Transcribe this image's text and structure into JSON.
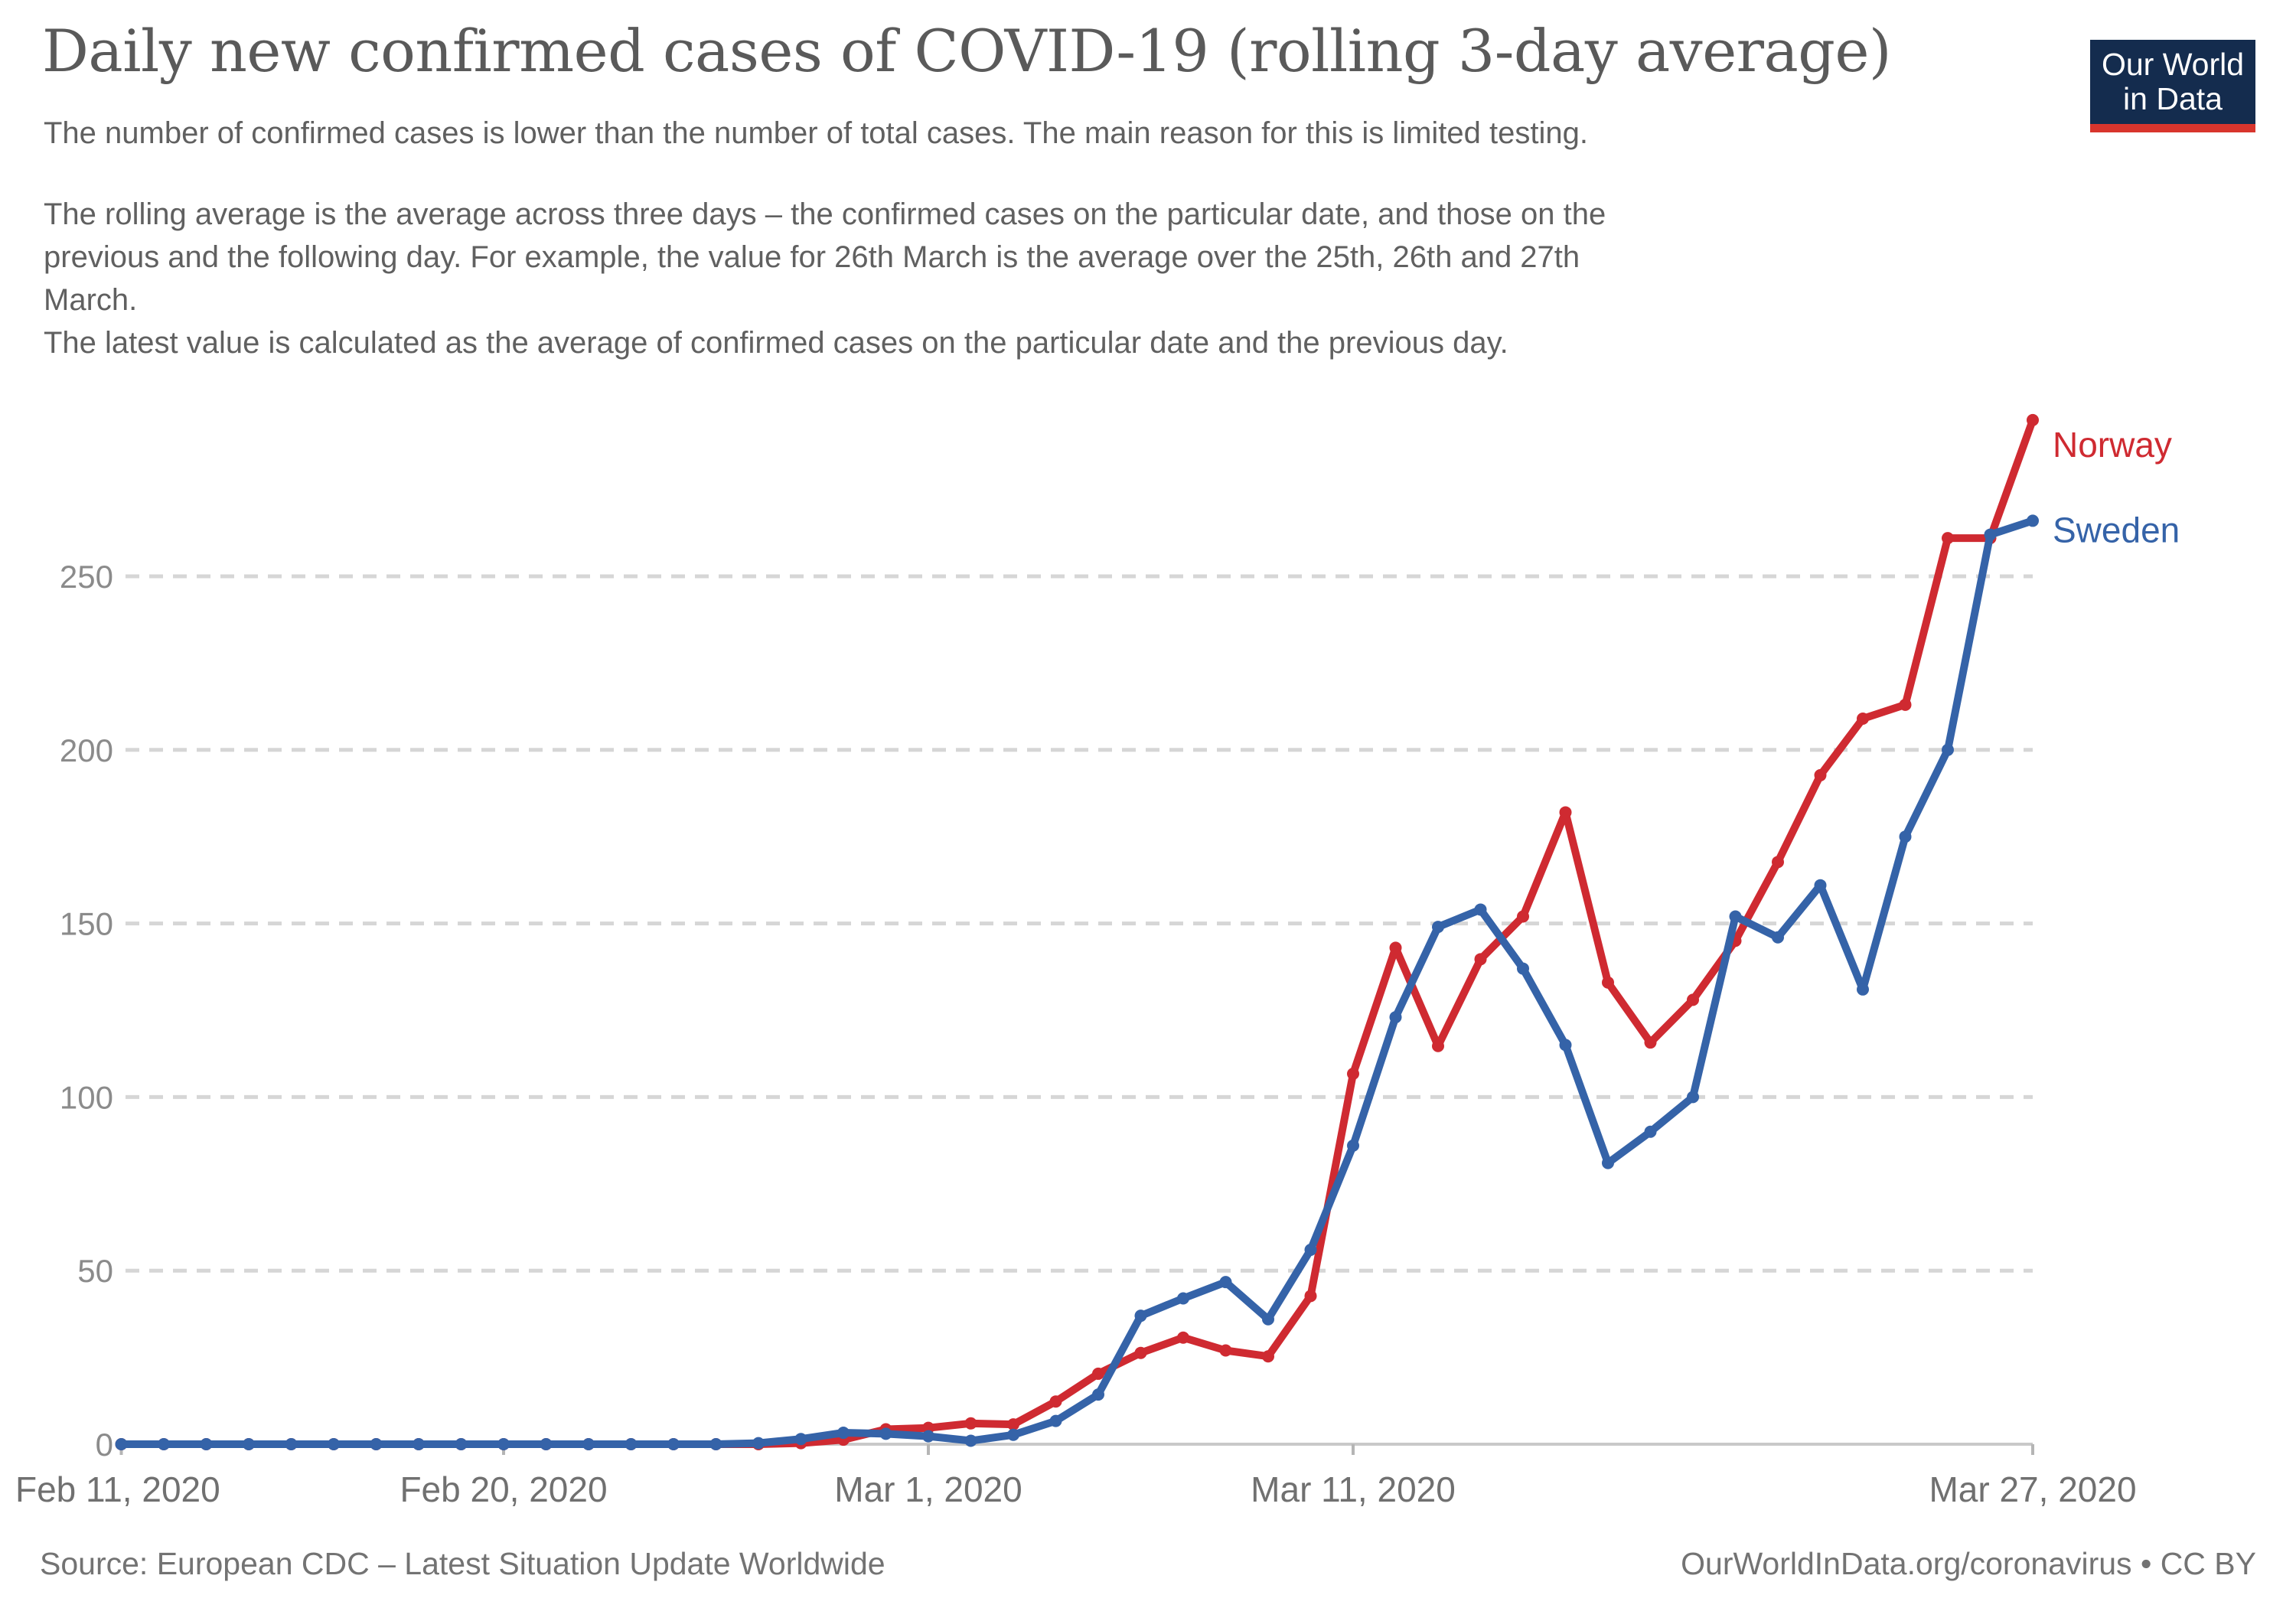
{
  "header": {
    "title": "Daily new confirmed cases of COVID-19 (rolling 3-day average)",
    "subtitle": "The number of confirmed cases is lower than the number of total cases. The main reason for this is limited testing.",
    "description": "The rolling average is the average across three days – the confirmed cases on the particular date, and those on the\nprevious and the following day. For example, the value for 26th March is the average over the 25th, 26th and 27th\nMarch.\n The latest value is calculated as the average of confirmed cases on the particular date and the previous day."
  },
  "logo": {
    "line1": "Our World",
    "line2": "in Data",
    "bg_color": "#142c4e",
    "accent_color": "#d8352d"
  },
  "footer": {
    "source": "Source: European CDC – Latest Situation Update Worldwide",
    "credit": "OurWorldInData.org/coronavirus • CC BY"
  },
  "chart_data": {
    "type": "line",
    "title": "Daily new confirmed cases of COVID-19 (rolling 3-day average)",
    "xlabel": "",
    "ylabel": "",
    "ylim": [
      0,
      300
    ],
    "grid": "dashed horizontal gridlines",
    "legend_position": "labels at right end of lines",
    "x": [
      "2020-02-11",
      "2020-02-12",
      "2020-02-13",
      "2020-02-14",
      "2020-02-15",
      "2020-02-16",
      "2020-02-17",
      "2020-02-18",
      "2020-02-19",
      "2020-02-20",
      "2020-02-21",
      "2020-02-22",
      "2020-02-23",
      "2020-02-24",
      "2020-02-25",
      "2020-02-26",
      "2020-02-27",
      "2020-02-28",
      "2020-02-29",
      "2020-03-01",
      "2020-03-02",
      "2020-03-03",
      "2020-03-04",
      "2020-03-05",
      "2020-03-06",
      "2020-03-07",
      "2020-03-08",
      "2020-03-09",
      "2020-03-10",
      "2020-03-11",
      "2020-03-12",
      "2020-03-13",
      "2020-03-14",
      "2020-03-15",
      "2020-03-16",
      "2020-03-17",
      "2020-03-18",
      "2020-03-19",
      "2020-03-20",
      "2020-03-21",
      "2020-03-22",
      "2020-03-23",
      "2020-03-24",
      "2020-03-25",
      "2020-03-26",
      "2020-03-27"
    ],
    "x_ticks": [
      {
        "label": "Feb 11, 2020",
        "index": 0
      },
      {
        "label": "Feb 20, 2020",
        "index": 9
      },
      {
        "label": "Mar 1, 2020",
        "index": 19
      },
      {
        "label": "Mar 11, 2020",
        "index": 29
      },
      {
        "label": "Mar 27, 2020",
        "index": 45
      }
    ],
    "y_ticks": [
      0,
      50,
      100,
      150,
      200,
      250
    ],
    "series": [
      {
        "name": "Norway",
        "color": "#cf2a31",
        "values": [
          0,
          0,
          0,
          0,
          0,
          0,
          0,
          0,
          0,
          0,
          0,
          0,
          0,
          0,
          0,
          0,
          0.3,
          1.3,
          4.3,
          4.7,
          6,
          5.7,
          12.3,
          20.3,
          26.3,
          30.7,
          27,
          25.3,
          42.7,
          106.7,
          143,
          114.7,
          139.7,
          152,
          182,
          133,
          115.7,
          128,
          145,
          167.7,
          192.7,
          209,
          213,
          261,
          261,
          295
        ]
      },
      {
        "name": "Sweden",
        "color": "#3563a8",
        "values": [
          0,
          0,
          0,
          0,
          0,
          0,
          0,
          0,
          0,
          0,
          0,
          0,
          0,
          0,
          0,
          0.3,
          1.5,
          3.3,
          3,
          2.3,
          1,
          2.7,
          6.7,
          14.3,
          37,
          42,
          46.7,
          36,
          56,
          86,
          123,
          149,
          154,
          137,
          115,
          81,
          90,
          100,
          152,
          146,
          161,
          131,
          175,
          200,
          262,
          266
        ]
      }
    ]
  }
}
